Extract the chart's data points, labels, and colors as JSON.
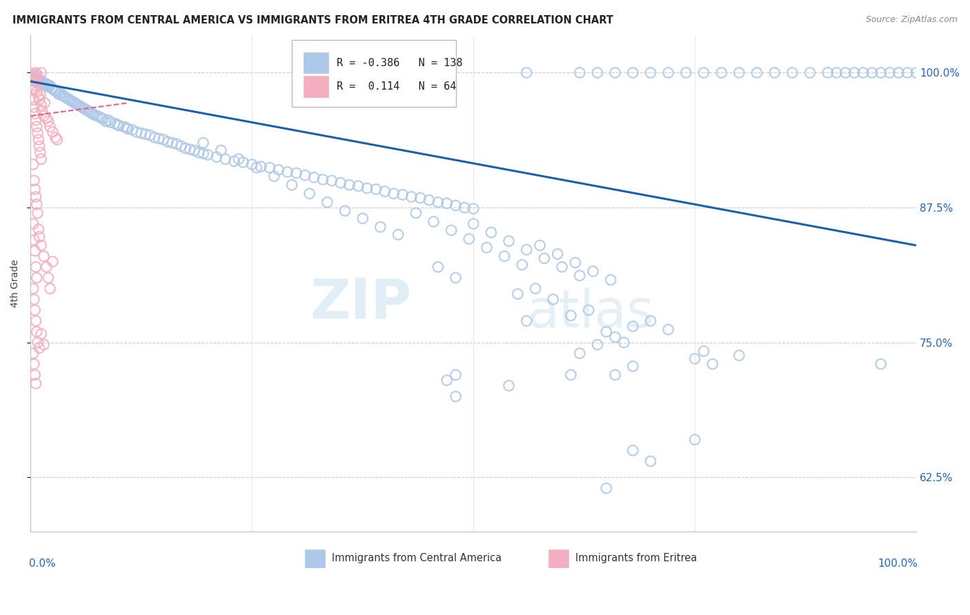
{
  "title": "IMMIGRANTS FROM CENTRAL AMERICA VS IMMIGRANTS FROM ERITREA 4TH GRADE CORRELATION CHART",
  "source": "Source: ZipAtlas.com",
  "ylabel": "4th Grade",
  "ytick_labels": [
    "62.5%",
    "75.0%",
    "87.5%",
    "100.0%"
  ],
  "ytick_values": [
    0.625,
    0.75,
    0.875,
    1.0
  ],
  "legend_blue_r": "-0.386",
  "legend_blue_n": "138",
  "legend_pink_r": "0.114",
  "legend_pink_n": "64",
  "blue_color": "#adc8e8",
  "blue_edge_color": "#7aaad0",
  "blue_line_color": "#1a5fa8",
  "pink_color": "#f4b0c0",
  "pink_edge_color": "#e08090",
  "pink_line_color": "#e06080",
  "xlim": [
    0.0,
    1.0
  ],
  "ylim": [
    0.575,
    1.035
  ],
  "blue_trend_x": [
    0.0,
    1.0
  ],
  "blue_trend_y": [
    0.992,
    0.84
  ],
  "pink_trend_x": [
    0.0,
    0.11
  ],
  "pink_trend_y": [
    0.96,
    0.972
  ],
  "blue_scatter": [
    [
      0.001,
      0.998
    ],
    [
      0.002,
      0.997
    ],
    [
      0.003,
      0.996
    ],
    [
      0.004,
      0.995
    ],
    [
      0.005,
      0.994
    ],
    [
      0.006,
      0.993
    ],
    [
      0.007,
      0.995
    ],
    [
      0.008,
      0.994
    ],
    [
      0.009,
      0.993
    ],
    [
      0.01,
      0.992
    ],
    [
      0.011,
      0.991
    ],
    [
      0.012,
      0.99
    ],
    [
      0.013,
      0.992
    ],
    [
      0.014,
      0.991
    ],
    [
      0.015,
      0.99
    ],
    [
      0.016,
      0.989
    ],
    [
      0.017,
      0.99
    ],
    [
      0.018,
      0.988
    ],
    [
      0.019,
      0.989
    ],
    [
      0.02,
      0.987
    ],
    [
      0.022,
      0.988
    ],
    [
      0.024,
      0.986
    ],
    [
      0.025,
      0.985
    ],
    [
      0.027,
      0.984
    ],
    [
      0.028,
      0.983
    ],
    [
      0.03,
      0.982
    ],
    [
      0.032,
      0.98
    ],
    [
      0.034,
      0.981
    ],
    [
      0.036,
      0.979
    ],
    [
      0.038,
      0.978
    ],
    [
      0.04,
      0.977
    ],
    [
      0.042,
      0.976
    ],
    [
      0.044,
      0.975
    ],
    [
      0.046,
      0.974
    ],
    [
      0.048,
      0.973
    ],
    [
      0.05,
      0.972
    ],
    [
      0.052,
      0.971
    ],
    [
      0.054,
      0.97
    ],
    [
      0.056,
      0.969
    ],
    [
      0.058,
      0.968
    ],
    [
      0.06,
      0.967
    ],
    [
      0.062,
      0.966
    ],
    [
      0.064,
      0.965
    ],
    [
      0.066,
      0.964
    ],
    [
      0.068,
      0.963
    ],
    [
      0.07,
      0.962
    ],
    [
      0.072,
      0.961
    ],
    [
      0.075,
      0.96
    ],
    [
      0.078,
      0.959
    ],
    [
      0.08,
      0.958
    ],
    [
      0.082,
      0.957
    ],
    [
      0.085,
      0.955
    ],
    [
      0.088,
      0.956
    ],
    [
      0.09,
      0.954
    ],
    [
      0.095,
      0.953
    ],
    [
      0.098,
      0.952
    ],
    [
      0.1,
      0.951
    ],
    [
      0.105,
      0.95
    ],
    [
      0.108,
      0.949
    ],
    [
      0.11,
      0.948
    ],
    [
      0.115,
      0.947
    ],
    [
      0.12,
      0.945
    ],
    [
      0.125,
      0.944
    ],
    [
      0.13,
      0.943
    ],
    [
      0.135,
      0.942
    ],
    [
      0.14,
      0.94
    ],
    [
      0.145,
      0.939
    ],
    [
      0.15,
      0.938
    ],
    [
      0.155,
      0.936
    ],
    [
      0.16,
      0.935
    ],
    [
      0.165,
      0.934
    ],
    [
      0.17,
      0.932
    ],
    [
      0.175,
      0.93
    ],
    [
      0.18,
      0.929
    ],
    [
      0.185,
      0.928
    ],
    [
      0.19,
      0.926
    ],
    [
      0.195,
      0.925
    ],
    [
      0.2,
      0.924
    ],
    [
      0.21,
      0.922
    ],
    [
      0.22,
      0.92
    ],
    [
      0.23,
      0.918
    ],
    [
      0.24,
      0.917
    ],
    [
      0.25,
      0.915
    ],
    [
      0.26,
      0.913
    ],
    [
      0.27,
      0.912
    ],
    [
      0.28,
      0.91
    ],
    [
      0.29,
      0.908
    ],
    [
      0.3,
      0.907
    ],
    [
      0.31,
      0.905
    ],
    [
      0.32,
      0.903
    ],
    [
      0.33,
      0.901
    ],
    [
      0.34,
      0.9
    ],
    [
      0.35,
      0.898
    ],
    [
      0.36,
      0.896
    ],
    [
      0.37,
      0.895
    ],
    [
      0.38,
      0.893
    ],
    [
      0.39,
      0.892
    ],
    [
      0.4,
      0.89
    ],
    [
      0.41,
      0.888
    ],
    [
      0.42,
      0.887
    ],
    [
      0.43,
      0.885
    ],
    [
      0.44,
      0.884
    ],
    [
      0.45,
      0.882
    ],
    [
      0.46,
      0.88
    ],
    [
      0.47,
      0.879
    ],
    [
      0.48,
      0.877
    ],
    [
      0.49,
      0.875
    ],
    [
      0.5,
      0.874
    ],
    [
      0.195,
      0.935
    ],
    [
      0.215,
      0.928
    ],
    [
      0.235,
      0.92
    ],
    [
      0.255,
      0.912
    ],
    [
      0.275,
      0.904
    ],
    [
      0.295,
      0.896
    ],
    [
      0.315,
      0.888
    ],
    [
      0.335,
      0.88
    ],
    [
      0.355,
      0.872
    ],
    [
      0.375,
      0.865
    ],
    [
      0.395,
      0.857
    ],
    [
      0.415,
      0.85
    ],
    [
      0.435,
      0.87
    ],
    [
      0.455,
      0.862
    ],
    [
      0.475,
      0.854
    ],
    [
      0.495,
      0.846
    ],
    [
      0.515,
      0.838
    ],
    [
      0.535,
      0.83
    ],
    [
      0.555,
      0.822
    ],
    [
      0.575,
      0.84
    ],
    [
      0.595,
      0.832
    ],
    [
      0.615,
      0.824
    ],
    [
      0.635,
      0.816
    ],
    [
      0.655,
      0.808
    ],
    [
      0.5,
      0.86
    ],
    [
      0.52,
      0.852
    ],
    [
      0.54,
      0.844
    ],
    [
      0.56,
      0.836
    ],
    [
      0.58,
      0.828
    ],
    [
      0.6,
      0.82
    ],
    [
      0.62,
      0.812
    ],
    [
      0.48,
      0.81
    ],
    [
      0.46,
      0.82
    ],
    [
      0.55,
      0.795
    ],
    [
      0.57,
      0.8
    ],
    [
      0.59,
      0.79
    ],
    [
      0.56,
      0.77
    ],
    [
      0.61,
      0.775
    ],
    [
      0.63,
      0.78
    ],
    [
      0.65,
      0.76
    ],
    [
      0.67,
      0.75
    ],
    [
      0.66,
      0.755
    ],
    [
      0.68,
      0.765
    ],
    [
      0.7,
      0.77
    ],
    [
      0.72,
      0.762
    ],
    [
      0.48,
      0.72
    ],
    [
      0.47,
      0.715
    ],
    [
      0.62,
      0.74
    ],
    [
      0.64,
      0.748
    ],
    [
      0.75,
      0.735
    ],
    [
      0.76,
      0.742
    ],
    [
      0.77,
      0.73
    ],
    [
      0.8,
      0.738
    ],
    [
      0.66,
      0.72
    ],
    [
      0.68,
      0.728
    ],
    [
      0.75,
      0.66
    ],
    [
      0.96,
      0.73
    ],
    [
      0.54,
      0.71
    ],
    [
      0.61,
      0.72
    ],
    [
      0.48,
      0.7
    ],
    [
      0.65,
      0.615
    ],
    [
      0.68,
      0.65
    ],
    [
      0.7,
      0.64
    ],
    [
      1.0,
      1.0
    ],
    [
      0.99,
      1.0
    ],
    [
      0.98,
      1.0
    ],
    [
      0.97,
      1.0
    ],
    [
      0.96,
      1.0
    ],
    [
      0.95,
      1.0
    ],
    [
      0.94,
      1.0
    ],
    [
      0.93,
      1.0
    ],
    [
      0.92,
      1.0
    ],
    [
      0.91,
      1.0
    ],
    [
      0.9,
      1.0
    ],
    [
      0.88,
      1.0
    ],
    [
      0.86,
      1.0
    ],
    [
      0.84,
      1.0
    ],
    [
      0.82,
      1.0
    ],
    [
      0.8,
      1.0
    ],
    [
      0.78,
      1.0
    ],
    [
      0.76,
      1.0
    ],
    [
      0.74,
      1.0
    ],
    [
      0.72,
      1.0
    ],
    [
      0.7,
      1.0
    ],
    [
      0.68,
      1.0
    ],
    [
      0.66,
      1.0
    ],
    [
      0.64,
      1.0
    ],
    [
      0.62,
      1.0
    ],
    [
      0.56,
      1.0
    ],
    [
      0.46,
      1.0
    ],
    [
      0.4,
      1.0
    ],
    [
      0.34,
      1.0
    ],
    [
      0.31,
      1.0
    ]
  ],
  "pink_scatter": [
    [
      0.002,
      0.995
    ],
    [
      0.003,
      0.992
    ],
    [
      0.004,
      0.988
    ],
    [
      0.005,
      0.985
    ],
    [
      0.006,
      0.997
    ],
    [
      0.007,
      0.982
    ],
    [
      0.008,
      0.99
    ],
    [
      0.009,
      0.978
    ],
    [
      0.01,
      0.975
    ],
    [
      0.011,
      0.98
    ],
    [
      0.012,
      0.97
    ],
    [
      0.013,
      0.965
    ],
    [
      0.015,
      0.96
    ],
    [
      0.016,
      0.972
    ],
    [
      0.018,
      0.958
    ],
    [
      0.02,
      0.955
    ],
    [
      0.022,
      0.95
    ],
    [
      0.025,
      0.945
    ],
    [
      0.028,
      0.94
    ],
    [
      0.03,
      0.938
    ],
    [
      0.003,
      0.975
    ],
    [
      0.004,
      0.968
    ],
    [
      0.005,
      0.962
    ],
    [
      0.006,
      0.956
    ],
    [
      0.007,
      0.95
    ],
    [
      0.008,
      0.944
    ],
    [
      0.009,
      0.938
    ],
    [
      0.01,
      0.932
    ],
    [
      0.011,
      0.926
    ],
    [
      0.012,
      0.92
    ],
    [
      0.003,
      0.915
    ],
    [
      0.004,
      0.9
    ],
    [
      0.005,
      0.892
    ],
    [
      0.006,
      0.885
    ],
    [
      0.007,
      0.878
    ],
    [
      0.008,
      0.87
    ],
    [
      0.009,
      0.855
    ],
    [
      0.01,
      0.848
    ],
    [
      0.012,
      0.84
    ],
    [
      0.015,
      0.83
    ],
    [
      0.018,
      0.82
    ],
    [
      0.02,
      0.81
    ],
    [
      0.022,
      0.8
    ],
    [
      0.025,
      0.825
    ],
    [
      0.003,
      0.86
    ],
    [
      0.004,
      0.845
    ],
    [
      0.005,
      0.835
    ],
    [
      0.006,
      0.82
    ],
    [
      0.007,
      0.81
    ],
    [
      0.003,
      0.8
    ],
    [
      0.004,
      0.79
    ],
    [
      0.005,
      0.78
    ],
    [
      0.006,
      0.77
    ],
    [
      0.007,
      0.76
    ],
    [
      0.008,
      0.75
    ],
    [
      0.01,
      0.745
    ],
    [
      0.012,
      0.758
    ],
    [
      0.015,
      0.748
    ],
    [
      0.003,
      0.74
    ],
    [
      0.004,
      0.73
    ],
    [
      0.005,
      0.72
    ],
    [
      0.006,
      0.712
    ],
    [
      0.012,
      1.0
    ],
    [
      0.008,
      0.998
    ],
    [
      0.006,
      1.0
    ],
    [
      0.004,
      0.999
    ]
  ]
}
